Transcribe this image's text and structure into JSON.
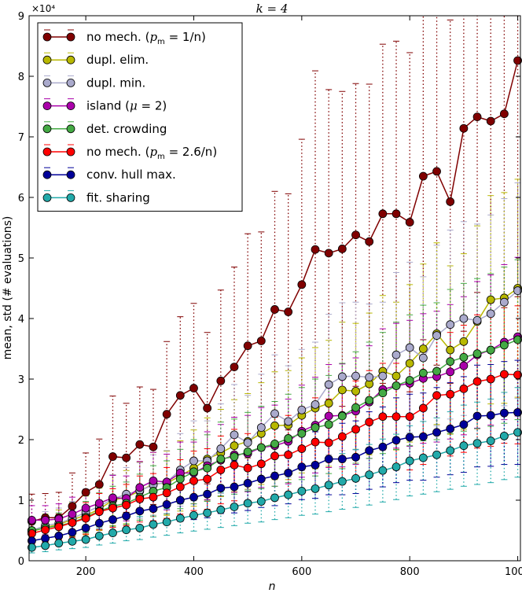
{
  "chart_data": {
    "type": "line",
    "title": "k = 4",
    "xlabel": "n",
    "ylabel": "mean, std (# evaluations)",
    "y_scale_label": "×10⁴",
    "y_scale_factor": 10000,
    "xlim": [
      100,
      1000
    ],
    "ylim": [
      0,
      90000
    ],
    "xticks": [
      200,
      400,
      600,
      800,
      1000
    ],
    "yticks": [
      0,
      10000,
      20000,
      30000,
      40000,
      50000,
      60000,
      70000,
      80000,
      90000
    ],
    "ytick_labels": [
      "0",
      "1",
      "2",
      "3",
      "4",
      "5",
      "6",
      "7",
      "8",
      "9"
    ],
    "legend_position": "top-left",
    "x": [
      100,
      125,
      150,
      175,
      200,
      225,
      250,
      275,
      300,
      325,
      350,
      375,
      400,
      425,
      450,
      475,
      500,
      525,
      550,
      575,
      600,
      625,
      650,
      675,
      700,
      725,
      750,
      775,
      800,
      825,
      850,
      875,
      900,
      925,
      950,
      975,
      1000
    ],
    "series": [
      {
        "name": "no mech. (pm = 1/n)",
        "label_parts": [
          "no mech. (",
          "p",
          "m",
          " = 1/n)"
        ],
        "color": "#800000",
        "values": [
          6500,
          7100,
          7100,
          9000,
          11300,
          12600,
          17200,
          17000,
          19200,
          18800,
          24200,
          27300,
          28500,
          25200,
          29700,
          32000,
          35500,
          36300,
          41500,
          41100,
          45600,
          51400,
          50800,
          51500,
          53800,
          52700,
          57300,
          57300,
          55900,
          63500,
          64300,
          59300,
          71400,
          73300,
          72600,
          73800,
          82600
        ],
        "std": [
          4500,
          4000,
          4200,
          5500,
          6500,
          7500,
          10000,
          9000,
          9500,
          9500,
          12000,
          13000,
          14000,
          12500,
          15000,
          16500,
          18500,
          18000,
          19500,
          19500,
          24000,
          29500,
          27000,
          26000,
          25000,
          26000,
          28000,
          28500,
          28000,
          27000,
          32000,
          30000,
          33500,
          29000,
          30000,
          32000,
          39000
        ]
      },
      {
        "name": "dupl. elim.",
        "label_parts": [
          "dupl. elim."
        ],
        "color": "#b8b800",
        "values": [
          4800,
          5500,
          6000,
          6800,
          7500,
          8500,
          10000,
          10500,
          11500,
          12700,
          12800,
          14000,
          15300,
          16800,
          17800,
          19000,
          19700,
          21000,
          22300,
          22400,
          24000,
          25200,
          26000,
          28200,
          28000,
          29200,
          31300,
          30500,
          32600,
          35000,
          37500,
          34800,
          36200,
          39500,
          43100,
          43400,
          45000
        ],
        "std": [
          1800,
          2200,
          2400,
          2800,
          3200,
          3500,
          4200,
          4400,
          4800,
          5200,
          5300,
          5800,
          6300,
          6800,
          7200,
          7600,
          7900,
          8400,
          8900,
          9000,
          9500,
          10000,
          10400,
          11200,
          11200,
          11700,
          12500,
          12200,
          13000,
          14000,
          15000,
          13900,
          14500,
          15800,
          17200,
          17400,
          18000
        ]
      },
      {
        "name": "dupl. min.",
        "label_parts": [
          "dupl. min."
        ],
        "color": "#aaaacc",
        "values": [
          5000,
          5800,
          6200,
          7000,
          8000,
          9000,
          10200,
          11000,
          11600,
          12500,
          13000,
          15000,
          16500,
          16500,
          18500,
          20800,
          19500,
          22000,
          24300,
          23000,
          24900,
          25800,
          29100,
          30400,
          30500,
          30300,
          30500,
          34000,
          35200,
          33500,
          37200,
          39000,
          40000,
          39700,
          40800,
          42700,
          44600
        ],
        "std": [
          1900,
          2300,
          2500,
          2800,
          3200,
          3600,
          4000,
          4400,
          4600,
          5000,
          5200,
          6000,
          6600,
          6600,
          7400,
          8300,
          7800,
          8800,
          9700,
          9200,
          10000,
          10300,
          11600,
          12200,
          12200,
          12100,
          12200,
          13600,
          14100,
          13400,
          14900,
          15600,
          16000,
          15900,
          16300,
          17100,
          17800
        ]
      },
      {
        "name": "island (μ = 2)",
        "label_parts": [
          "island (",
          "μ",
          " = 2)"
        ],
        "color": "#aa00aa",
        "values": [
          6700,
          6700,
          6900,
          7700,
          8700,
          9500,
          10400,
          10300,
          12100,
          13200,
          13000,
          14500,
          14500,
          15700,
          16600,
          17500,
          17700,
          18700,
          19000,
          19700,
          21400,
          22400,
          23900,
          24000,
          24700,
          26200,
          28300,
          28900,
          29300,
          30100,
          30400,
          31200,
          32200,
          34000,
          34800,
          36100,
          37000
        ],
        "std": [
          2400,
          2400,
          2500,
          2800,
          3100,
          3400,
          3700,
          3700,
          4300,
          4700,
          4600,
          5100,
          5100,
          5600,
          5900,
          6200,
          6300,
          6600,
          6700,
          7000,
          7600,
          7900,
          8500,
          8500,
          8800,
          9300,
          10000,
          10300,
          10400,
          10700,
          10800,
          11100,
          11400,
          12100,
          12400,
          12800,
          13100
        ]
      },
      {
        "name": "det. crowding",
        "label_parts": [
          "det. crowding"
        ],
        "color": "#44aa44",
        "values": [
          5000,
          5400,
          5800,
          6300,
          7200,
          8200,
          9000,
          9500,
          10500,
          11500,
          12100,
          13500,
          14700,
          15300,
          16800,
          17200,
          18000,
          18700,
          19300,
          20200,
          21000,
          22000,
          22500,
          23900,
          25300,
          26500,
          27700,
          28900,
          29800,
          31000,
          31300,
          32900,
          33600,
          34200,
          34800,
          35600,
          36500
        ],
        "std": [
          1800,
          2000,
          2100,
          2300,
          2600,
          3000,
          3300,
          3500,
          3800,
          4200,
          4400,
          4900,
          5300,
          5500,
          6100,
          6200,
          6500,
          6800,
          7000,
          7300,
          7600,
          8000,
          8100,
          8700,
          9200,
          9600,
          10000,
          10500,
          10800,
          11200,
          11300,
          11900,
          12200,
          12400,
          12600,
          12900,
          13200
        ]
      },
      {
        "name": "no mech. (pm = 2.6/n)",
        "label_parts": [
          "no mech. (",
          "p",
          "m",
          " = 2.6/n)"
        ],
        "color": "#ff0000",
        "values": [
          4500,
          5100,
          5600,
          6300,
          7000,
          8100,
          8700,
          9200,
          10200,
          10500,
          11200,
          12200,
          13200,
          13500,
          15000,
          15800,
          15300,
          16000,
          17300,
          17500,
          18500,
          19600,
          19500,
          20500,
          21700,
          22900,
          23800,
          23800,
          23800,
          25200,
          27300,
          27500,
          28400,
          29600,
          30000,
          30800,
          30700
        ],
        "std": [
          1700,
          1900,
          2100,
          2400,
          2600,
          3000,
          3200,
          3400,
          3800,
          3900,
          4200,
          4500,
          4900,
          5000,
          5600,
          5900,
          5700,
          6000,
          6400,
          6500,
          6900,
          7300,
          7200,
          7600,
          8000,
          8500,
          8800,
          8800,
          8800,
          9300,
          10100,
          10200,
          10500,
          11000,
          11100,
          11400,
          11400
        ]
      },
      {
        "name": "conv. hull max.",
        "label_parts": [
          "conv. hull max."
        ],
        "color": "#000099",
        "values": [
          3300,
          3700,
          4100,
          4700,
          5400,
          6200,
          6800,
          7400,
          8200,
          8600,
          9300,
          10000,
          10500,
          11000,
          12000,
          12200,
          12800,
          13500,
          14000,
          14500,
          15500,
          15800,
          16800,
          16800,
          17100,
          18200,
          18800,
          19900,
          20400,
          20500,
          21200,
          21800,
          22500,
          23900,
          24000,
          24400,
          24500
        ],
        "std": [
          1200,
          1300,
          1500,
          1700,
          1900,
          2200,
          2400,
          2600,
          2900,
          3000,
          3300,
          3500,
          3700,
          3900,
          4200,
          4300,
          4500,
          4700,
          4900,
          5100,
          5400,
          5500,
          5900,
          5900,
          6000,
          6400,
          6600,
          7000,
          7100,
          7200,
          7400,
          7600,
          7900,
          8400,
          8400,
          8500,
          8600
        ]
      },
      {
        "name": "fit. sharing",
        "label_parts": [
          "fit. sharing"
        ],
        "color": "#22aaaa",
        "values": [
          2200,
          2500,
          2900,
          3200,
          3500,
          4100,
          4600,
          5100,
          5400,
          6000,
          6400,
          7000,
          7500,
          7900,
          8400,
          8900,
          9500,
          9800,
          10400,
          10900,
          11500,
          11900,
          12500,
          13100,
          13600,
          14200,
          14900,
          15500,
          16500,
          17000,
          17500,
          18200,
          19000,
          19400,
          19800,
          20600,
          21200
        ],
        "std": [
          900,
          1000,
          1100,
          1200,
          1300,
          1500,
          1700,
          1800,
          1900,
          2100,
          2200,
          2400,
          2600,
          2700,
          2900,
          3100,
          3300,
          3400,
          3600,
          3800,
          4000,
          4200,
          4400,
          4600,
          4800,
          5000,
          5200,
          5400,
          5800,
          6000,
          6100,
          6400,
          6700,
          6800,
          6900,
          7200,
          7400
        ]
      }
    ]
  }
}
